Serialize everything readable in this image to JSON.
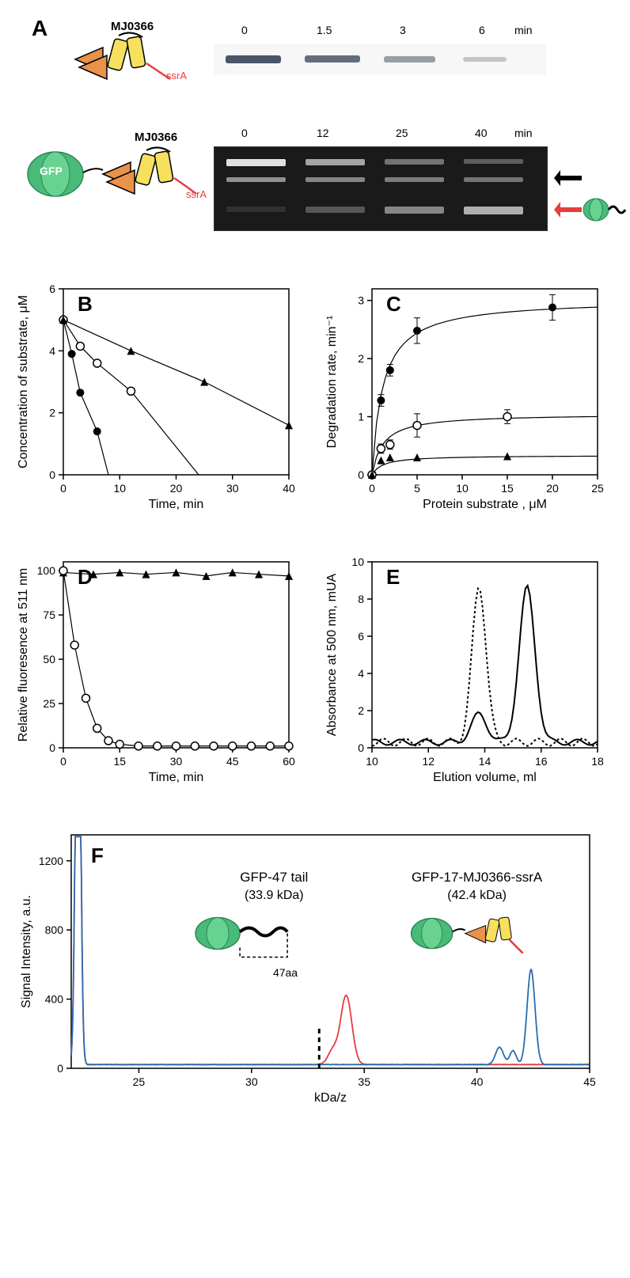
{
  "panelA": {
    "label": "A",
    "protein1": "MJ0366",
    "protein2_gfp": "GFP",
    "protein2": "MJ0366",
    "ssrA": "ssrA",
    "gel1_times": [
      "0",
      "1.5",
      "3",
      "6"
    ],
    "gel1_unit": "min",
    "gel2_times": [
      "0",
      "12",
      "25",
      "40"
    ],
    "gel2_unit": "min",
    "band1_intensities": [
      1.0,
      0.85,
      0.55,
      0.25
    ],
    "band2_top_intensities": [
      1.0,
      0.7,
      0.45,
      0.3
    ],
    "band2_mid_intensities": [
      0.6,
      0.55,
      0.5,
      0.45
    ],
    "band2_bot_intensities": [
      0.1,
      0.3,
      0.55,
      0.75
    ],
    "arrow_top_color": "#000000",
    "arrow_bot_color": "#e53e3e",
    "protein_colors": {
      "arrows_orange": "#e8924a",
      "helices_yellow": "#f6e05e",
      "gfp_green": "#48bb78",
      "ssra_red": "#e53e3e"
    }
  },
  "panelB": {
    "label": "B",
    "xlabel": "Time, min",
    "ylabel": "Concentration of substrate, μM",
    "xlim": [
      0,
      40
    ],
    "ylim": [
      0,
      6
    ],
    "xticks": [
      0,
      10,
      20,
      30,
      40
    ],
    "yticks": [
      0,
      2,
      4,
      6
    ],
    "series": [
      {
        "marker": "filled-circle",
        "x": [
          0,
          1.5,
          3,
          6
        ],
        "y": [
          5,
          3.9,
          2.65,
          1.4
        ],
        "line_to": [
          8,
          0
        ]
      },
      {
        "marker": "open-circle",
        "x": [
          0,
          3,
          6,
          12
        ],
        "y": [
          5,
          4.15,
          3.6,
          2.7
        ],
        "line_to": [
          24,
          0
        ]
      },
      {
        "marker": "filled-triangle",
        "x": [
          0,
          12,
          25,
          40
        ],
        "y": [
          5,
          4.0,
          3.0,
          1.6
        ],
        "line_to": [
          40,
          1.5
        ]
      }
    ]
  },
  "panelC": {
    "label": "C",
    "xlabel": "Protein substrate , μM",
    "ylabel": "Degradation rate, min⁻¹",
    "xlim": [
      0,
      25
    ],
    "ylim": [
      0,
      3.2
    ],
    "xticks": [
      0,
      5,
      10,
      15,
      20,
      25
    ],
    "yticks": [
      0,
      1,
      2,
      3
    ],
    "series": [
      {
        "marker": "filled-circle",
        "x": [
          0,
          1,
          2,
          5,
          20
        ],
        "y": [
          0,
          1.28,
          1.8,
          2.48,
          2.88
        ],
        "err": [
          0,
          0.1,
          0.1,
          0.22,
          0.22
        ]
      },
      {
        "marker": "open-circle",
        "x": [
          0,
          1,
          2,
          5,
          15
        ],
        "y": [
          0,
          0.45,
          0.52,
          0.85,
          1.0
        ],
        "err": [
          0,
          0.08,
          0.08,
          0.2,
          0.12
        ]
      },
      {
        "marker": "filled-triangle",
        "x": [
          0,
          1,
          2,
          5,
          15
        ],
        "y": [
          0,
          0.25,
          0.3,
          0.3,
          0.32
        ],
        "err": [
          0,
          0,
          0,
          0,
          0
        ]
      }
    ]
  },
  "panelD": {
    "label": "D",
    "xlabel": "Time, min",
    "ylabel": "Relative fluoresence at 511 nm",
    "xlim": [
      0,
      60
    ],
    "ylim": [
      0,
      105
    ],
    "xticks": [
      0,
      15,
      30,
      45,
      60
    ],
    "yticks": [
      0,
      25,
      50,
      75,
      100
    ],
    "series": [
      {
        "marker": "filled-triangle",
        "x": [
          0,
          8,
          15,
          22,
          30,
          38,
          45,
          52,
          60
        ],
        "y": [
          99,
          98,
          99,
          98,
          99,
          97,
          99,
          98,
          97
        ]
      },
      {
        "marker": "open-circle",
        "x": [
          0,
          3,
          6,
          9,
          12,
          15,
          20,
          25,
          30,
          35,
          40,
          45,
          50,
          55,
          60
        ],
        "y": [
          100,
          58,
          28,
          11,
          4,
          2,
          1,
          1,
          1,
          1,
          1,
          1,
          1,
          1,
          1
        ]
      }
    ]
  },
  "panelE": {
    "label": "E",
    "xlabel": "Elution volume, ml",
    "ylabel": "Absorbance at 500 nm, mUA",
    "xlim": [
      10,
      18
    ],
    "ylim": [
      0,
      10
    ],
    "xticks": [
      10,
      12,
      14,
      16,
      18
    ],
    "yticks": [
      0,
      2,
      4,
      6,
      8,
      10
    ],
    "dotted_curve": {
      "peak_x": 13.8,
      "peak_y": 8.4
    },
    "solid_curve": {
      "peak_x": 15.5,
      "peak_y": 8.3,
      "shoulder_x": 13.8,
      "shoulder_y": 1.5
    }
  },
  "panelF": {
    "label": "F",
    "xlabel": "kDa/z",
    "ylabel": "Signal Intensity, a.u.",
    "xlim": [
      22,
      45
    ],
    "ylim": [
      0,
      1350
    ],
    "xticks": [
      25,
      30,
      35,
      40,
      45
    ],
    "yticks": [
      0,
      400,
      800,
      1200
    ],
    "annotation1_title": "GFP-47 tail",
    "annotation1_mass": "(33.9 kDa)",
    "annotation1_aa": "47aa",
    "annotation2_title": "GFP-17-MJ0366-ssrA",
    "annotation2_mass": "(42.4 kDa)",
    "red_peak_x": 34.2,
    "red_peak_y": 400,
    "blue_peak_x": 42.4,
    "blue_peak_y": 550,
    "initial_peak_x": 22.3,
    "colors": {
      "red": "#e53e3e",
      "blue": "#2b6cb0",
      "gfp_green": "#48bb78"
    }
  }
}
